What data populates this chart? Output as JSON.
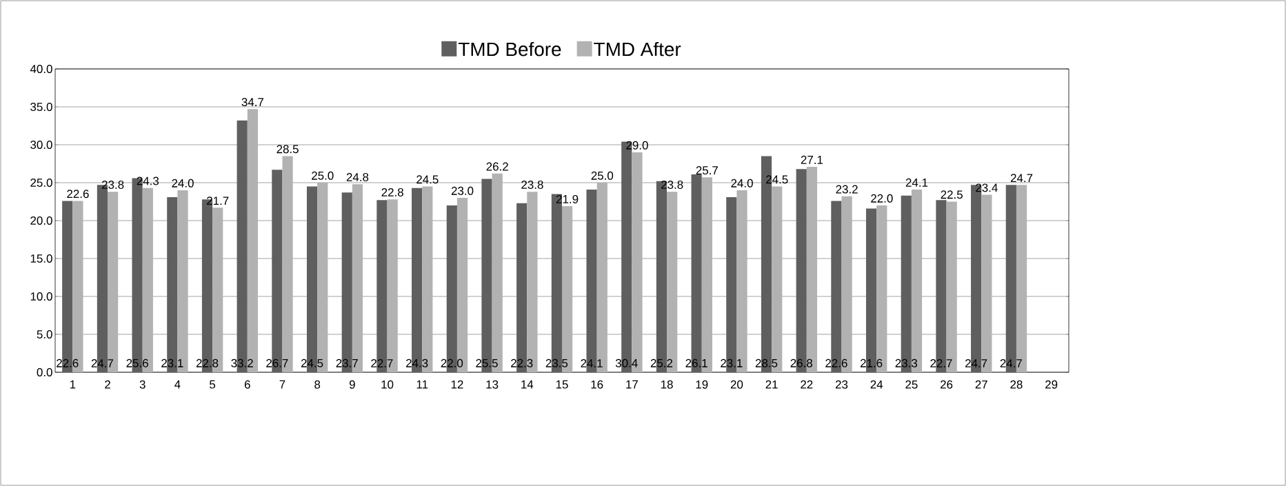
{
  "chart_data": {
    "type": "bar",
    "categories": [
      "1",
      "2",
      "3",
      "4",
      "5",
      "6",
      "7",
      "8",
      "9",
      "10",
      "11",
      "12",
      "13",
      "14",
      "15",
      "16",
      "17",
      "18",
      "19",
      "20",
      "21",
      "22",
      "23",
      "24",
      "25",
      "26",
      "27",
      "28",
      "29"
    ],
    "series": [
      {
        "name": "TMD Before",
        "color": "#5f5f5f",
        "values": [
          22.6,
          24.7,
          25.6,
          23.1,
          22.8,
          33.2,
          26.7,
          24.5,
          23.7,
          22.7,
          24.3,
          22.0,
          25.5,
          22.3,
          23.5,
          24.1,
          30.4,
          25.2,
          26.1,
          23.1,
          28.5,
          26.8,
          22.6,
          21.6,
          23.3,
          22.7,
          24.7,
          24.7,
          null
        ],
        "value_labels": [
          "22.6",
          "24.7",
          "25.6",
          "23.1",
          "22.8",
          "33.2",
          "26.7",
          "24.5",
          "23.7",
          "22.7",
          "24.3",
          "22.0",
          "25.5",
          "22.3",
          "23.5",
          "24.1",
          "30.4",
          "25.2",
          "26.1",
          "23.1",
          "28.5",
          "26.8",
          "22.6",
          "21.6",
          "23.3",
          "22.7",
          "24.7",
          "24.7",
          null
        ]
      },
      {
        "name": "TMD After",
        "color": "#b2b2b2",
        "values": [
          22.6,
          23.8,
          24.3,
          24.0,
          21.7,
          34.7,
          28.5,
          25.0,
          24.8,
          22.8,
          24.5,
          23.0,
          26.2,
          23.8,
          21.9,
          25.0,
          29.0,
          23.8,
          25.7,
          24.0,
          24.5,
          27.1,
          23.2,
          22.0,
          24.1,
          22.5,
          23.4,
          24.7,
          null
        ],
        "value_labels": [
          "22.6",
          "23.8",
          "24.3",
          "24.0",
          "21.7",
          "34.7",
          "28.5",
          "25.0",
          "24.8",
          "22.8",
          "24.5",
          "23.0",
          "26.2",
          "23.8",
          "21.9",
          "25.0",
          "29.0",
          "23.8",
          "25.7",
          "24.0",
          "24.5",
          "27.1",
          "23.2",
          "22.0",
          "24.1",
          "22.5",
          "23.4",
          "24.7",
          null
        ]
      }
    ],
    "ylim": [
      0,
      40
    ],
    "yticks": [
      {
        "value": 0,
        "label": "0.0"
      },
      {
        "value": 5,
        "label": "5.0"
      },
      {
        "value": 10,
        "label": "10.0"
      },
      {
        "value": 15,
        "label": "15.0"
      },
      {
        "value": 20,
        "label": "20.0"
      },
      {
        "value": 25,
        "label": "25.0"
      },
      {
        "value": 30,
        "label": "30.0"
      },
      {
        "value": 35,
        "label": "35.0"
      },
      {
        "value": 40,
        "label": "40.0"
      }
    ],
    "grid": "y",
    "legend": "top"
  }
}
